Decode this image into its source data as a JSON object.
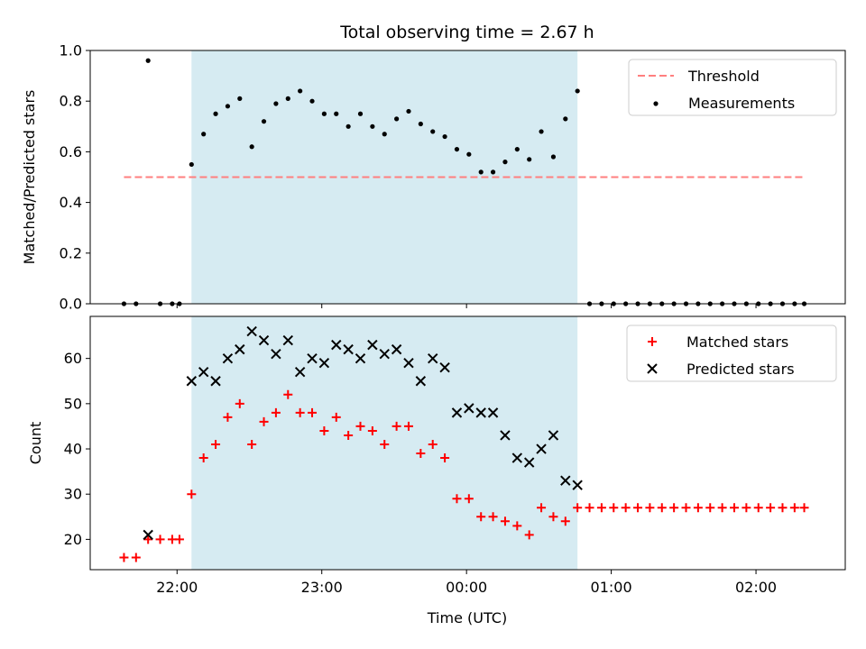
{
  "figure": {
    "title": "Total observing time = 2.67 h",
    "xlabel": "Time (UTC)"
  },
  "chart_data": [
    {
      "type": "scatter",
      "ylabel": "Matched/Predicted stars",
      "ylim": [
        0,
        1
      ],
      "yticks": [
        "0.0",
        "0.2",
        "0.4",
        "0.6",
        "0.8",
        "1.0"
      ],
      "xlim": [
        "21:24",
        "02:37"
      ],
      "xticks": [
        "22:00",
        "23:00",
        "00:00",
        "01:00",
        "02:00"
      ],
      "shaded_span": [
        "22:06",
        "00:46"
      ],
      "shaded_color": "#add8e6",
      "legend_position": "upper right",
      "series": [
        {
          "name": "Threshold",
          "style": "dashed line",
          "color": "#ff7f7f",
          "x": [
            "21:38",
            "00:46"
          ],
          "x_end": "02:20",
          "y": [
            0.5,
            0.5
          ]
        },
        {
          "name": "Measurements",
          "style": "dot",
          "color": "#000000",
          "points": [
            [
              "21:38",
              0.0
            ],
            [
              "21:43",
              0.0
            ],
            [
              "21:48",
              0.96
            ],
            [
              "21:53",
              0.0
            ],
            [
              "21:58",
              0.0
            ],
            [
              "22:01",
              0.0
            ],
            [
              "22:06",
              0.55
            ],
            [
              "22:11",
              0.67
            ],
            [
              "22:16",
              0.75
            ],
            [
              "22:21",
              0.78
            ],
            [
              "22:26",
              0.81
            ],
            [
              "22:31",
              0.62
            ],
            [
              "22:36",
              0.72
            ],
            [
              "22:41",
              0.79
            ],
            [
              "22:46",
              0.81
            ],
            [
              "22:51",
              0.84
            ],
            [
              "22:56",
              0.8
            ],
            [
              "23:01",
              0.75
            ],
            [
              "23:06",
              0.75
            ],
            [
              "23:11",
              0.7
            ],
            [
              "23:16",
              0.75
            ],
            [
              "23:21",
              0.7
            ],
            [
              "23:26",
              0.67
            ],
            [
              "23:31",
              0.73
            ],
            [
              "23:36",
              0.76
            ],
            [
              "23:41",
              0.71
            ],
            [
              "23:46",
              0.68
            ],
            [
              "23:51",
              0.66
            ],
            [
              "23:56",
              0.61
            ],
            [
              "00:01",
              0.59
            ],
            [
              "00:06",
              0.52
            ],
            [
              "00:11",
              0.52
            ],
            [
              "00:16",
              0.56
            ],
            [
              "00:21",
              0.61
            ],
            [
              "00:26",
              0.57
            ],
            [
              "00:31",
              0.68
            ],
            [
              "00:36",
              0.58
            ],
            [
              "00:41",
              0.73
            ],
            [
              "00:46",
              0.84
            ],
            [
              "00:51",
              0.0
            ],
            [
              "00:56",
              0.0
            ],
            [
              "01:01",
              0.0
            ],
            [
              "01:06",
              0.0
            ],
            [
              "01:11",
              0.0
            ],
            [
              "01:16",
              0.0
            ],
            [
              "01:21",
              0.0
            ],
            [
              "01:26",
              0.0
            ],
            [
              "01:31",
              0.0
            ],
            [
              "01:36",
              0.0
            ],
            [
              "01:41",
              0.0
            ],
            [
              "01:46",
              0.0
            ],
            [
              "01:51",
              0.0
            ],
            [
              "01:56",
              0.0
            ],
            [
              "02:01",
              0.0
            ],
            [
              "02:06",
              0.0
            ],
            [
              "02:11",
              0.0
            ],
            [
              "02:16",
              0.0
            ],
            [
              "02:20",
              0.0
            ]
          ]
        }
      ]
    },
    {
      "type": "scatter",
      "ylabel": "Count",
      "ylim": [
        13.3,
        69.3
      ],
      "yticks": [
        "20",
        "30",
        "40",
        "50",
        "60"
      ],
      "xlim": [
        "21:24",
        "02:37"
      ],
      "xticks": [
        "22:00",
        "23:00",
        "00:00",
        "01:00",
        "02:00"
      ],
      "shaded_span": [
        "22:06",
        "00:46"
      ],
      "shaded_color": "#add8e6",
      "legend_position": "upper right",
      "series": [
        {
          "name": "Matched stars",
          "style": "plus",
          "color": "#ff0000",
          "points": [
            [
              "21:38",
              16
            ],
            [
              "21:43",
              16
            ],
            [
              "21:48",
              20
            ],
            [
              "21:53",
              20
            ],
            [
              "21:58",
              20
            ],
            [
              "22:01",
              20
            ],
            [
              "22:06",
              30
            ],
            [
              "22:11",
              38
            ],
            [
              "22:16",
              41
            ],
            [
              "22:21",
              47
            ],
            [
              "22:26",
              50
            ],
            [
              "22:31",
              41
            ],
            [
              "22:36",
              46
            ],
            [
              "22:41",
              48
            ],
            [
              "22:46",
              52
            ],
            [
              "22:51",
              48
            ],
            [
              "22:56",
              48
            ],
            [
              "23:01",
              44
            ],
            [
              "23:06",
              47
            ],
            [
              "23:11",
              43
            ],
            [
              "23:16",
              45
            ],
            [
              "23:21",
              44
            ],
            [
              "23:26",
              41
            ],
            [
              "23:31",
              45
            ],
            [
              "23:36",
              45
            ],
            [
              "23:41",
              39
            ],
            [
              "23:46",
              41
            ],
            [
              "23:51",
              38
            ],
            [
              "23:56",
              29
            ],
            [
              "00:01",
              29
            ],
            [
              "00:06",
              25
            ],
            [
              "00:11",
              25
            ],
            [
              "00:16",
              24
            ],
            [
              "00:21",
              23
            ],
            [
              "00:26",
              21
            ],
            [
              "00:31",
              27
            ],
            [
              "00:36",
              25
            ],
            [
              "00:41",
              24
            ],
            [
              "00:46",
              27
            ],
            [
              "00:51",
              27
            ],
            [
              "00:56",
              27
            ],
            [
              "01:01",
              27
            ],
            [
              "01:06",
              27
            ],
            [
              "01:11",
              27
            ],
            [
              "01:16",
              27
            ],
            [
              "01:21",
              27
            ],
            [
              "01:26",
              27
            ],
            [
              "01:31",
              27
            ],
            [
              "01:36",
              27
            ],
            [
              "01:41",
              27
            ],
            [
              "01:46",
              27
            ],
            [
              "01:51",
              27
            ],
            [
              "01:56",
              27
            ],
            [
              "02:01",
              27
            ],
            [
              "02:06",
              27
            ],
            [
              "02:11",
              27
            ],
            [
              "02:16",
              27
            ],
            [
              "02:20",
              27
            ]
          ]
        },
        {
          "name": "Predicted stars",
          "style": "x",
          "color": "#000000",
          "points": [
            [
              "21:48",
              21
            ],
            [
              "22:06",
              55
            ],
            [
              "22:11",
              57
            ],
            [
              "22:16",
              55
            ],
            [
              "22:21",
              60
            ],
            [
              "22:26",
              62
            ],
            [
              "22:31",
              66
            ],
            [
              "22:36",
              64
            ],
            [
              "22:41",
              61
            ],
            [
              "22:46",
              64
            ],
            [
              "22:51",
              57
            ],
            [
              "22:56",
              60
            ],
            [
              "23:01",
              59
            ],
            [
              "23:06",
              63
            ],
            [
              "23:11",
              62
            ],
            [
              "23:16",
              60
            ],
            [
              "23:21",
              63
            ],
            [
              "23:26",
              61
            ],
            [
              "23:31",
              62
            ],
            [
              "23:36",
              59
            ],
            [
              "23:41",
              55
            ],
            [
              "23:46",
              60
            ],
            [
              "23:51",
              58
            ],
            [
              "23:56",
              48
            ],
            [
              "00:01",
              49
            ],
            [
              "00:06",
              48
            ],
            [
              "00:11",
              48
            ],
            [
              "00:16",
              43
            ],
            [
              "00:21",
              38
            ],
            [
              "00:26",
              37
            ],
            [
              "00:31",
              40
            ],
            [
              "00:36",
              43
            ],
            [
              "00:41",
              33
            ],
            [
              "00:46",
              32
            ]
          ]
        }
      ]
    }
  ]
}
